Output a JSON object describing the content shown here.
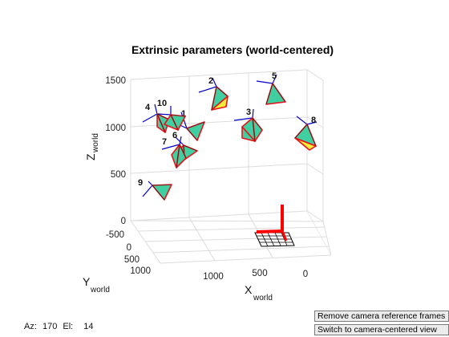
{
  "chart_data": {
    "type": "3d-scatter",
    "title": "Extrinsic parameters (world-centered)",
    "axes": {
      "x": {
        "label": "X",
        "sub": "world",
        "ticks": [
          "1000",
          "500",
          "0"
        ]
      },
      "y": {
        "label": "Y",
        "sub": "world",
        "ticks": [
          "-500",
          "0",
          "500",
          "1000"
        ]
      },
      "z": {
        "label": "Z",
        "sub": "world",
        "ticks": [
          "0",
          "500",
          "1000",
          "1500"
        ]
      }
    },
    "grid": true,
    "cameras": [
      {
        "id": "1",
        "label": "1"
      },
      {
        "id": "2",
        "label": "2"
      },
      {
        "id": "3",
        "label": "3"
      },
      {
        "id": "4",
        "label": "4"
      },
      {
        "id": "5",
        "label": "5"
      },
      {
        "id": "6",
        "label": "6"
      },
      {
        "id": "7",
        "label": "7"
      },
      {
        "id": "8",
        "label": "8"
      },
      {
        "id": "9",
        "label": "9"
      },
      {
        "id": "10",
        "label": "10"
      }
    ],
    "colors": {
      "face": "#3fcfa0",
      "face_alt": "#f2ee3a",
      "edge": "#e8131a",
      "axis_marker": "#0000c8",
      "frame": "#ff0000"
    }
  },
  "status": {
    "az_label": "Az:",
    "az_value": "170",
    "el_label": "El:",
    "el_value": "14"
  },
  "buttons": {
    "remove": "Remove camera reference frames",
    "switch": "Switch to camera-centered view"
  }
}
